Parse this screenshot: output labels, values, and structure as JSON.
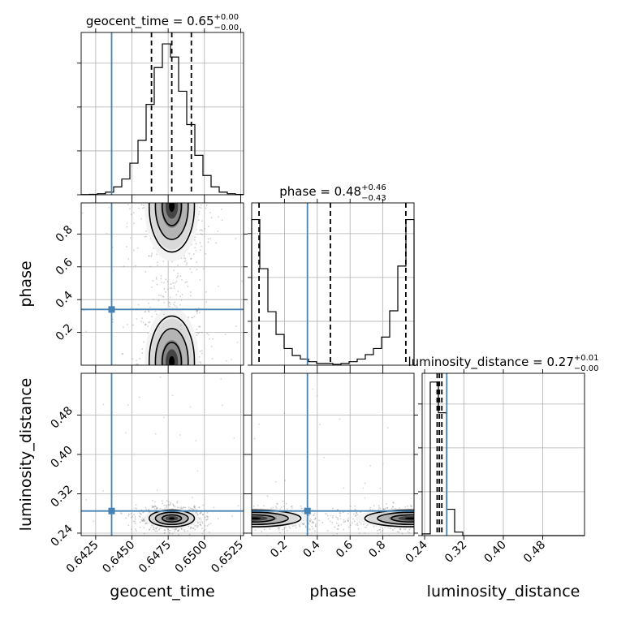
{
  "chart_data": {
    "type": "corner",
    "parameters": [
      "geocent_time",
      "phase",
      "luminosity_distance"
    ],
    "titles": [
      {
        "param": "geocent_time",
        "text": "geocent_time = 0.65",
        "sup": "+0.00",
        "sub": "−0.00"
      },
      {
        "param": "phase",
        "text": "phase = 0.48",
        "sup": "+0.46",
        "sub": "−0.43"
      },
      {
        "param": "luminosity_distance",
        "text": "luminosity_distance = 0.27",
        "sup": "+0.01",
        "sub": "−0.00"
      }
    ],
    "axis_labels": {
      "geocent_time": "geocent_time",
      "phase": "phase",
      "luminosity_distance": "luminosity_distance"
    },
    "ranges": {
      "geocent_time": [
        0.6415,
        0.6527
      ],
      "phase": [
        0.0,
        0.99
      ],
      "luminosity_distance": [
        0.235,
        0.565
      ]
    },
    "ticks": {
      "geocent_time": [
        "0.6425",
        "0.6450",
        "0.6475",
        "0.6500",
        "0.6525"
      ],
      "phase": [
        "0.2",
        "0.4",
        "0.6",
        "0.8"
      ],
      "luminosity_distance": [
        "0.24",
        "0.32",
        "0.40",
        "0.48"
      ]
    },
    "truths": {
      "geocent_time": 0.6436,
      "phase": 0.34,
      "luminosity_distance": 0.285
    },
    "quantiles": {
      "geocent_time": [
        0.64635,
        0.64775,
        0.6491
      ],
      "phase": [
        0.045,
        0.48,
        0.94
      ],
      "luminosity_distance": [
        0.2655,
        0.27,
        0.275
      ]
    },
    "histograms": {
      "geocent_time": {
        "edges": [
          0.6415,
          0.64206,
          0.64262,
          0.64318,
          0.64374,
          0.6443,
          0.64486,
          0.64542,
          0.64598,
          0.64654,
          0.6471,
          0.64766,
          0.64822,
          0.64878,
          0.64934,
          0.6499,
          0.65046,
          0.65102,
          0.65158,
          0.65214,
          0.6527
        ],
        "counts": [
          0.2,
          0.5,
          1.2,
          3,
          9,
          18,
          36,
          62,
          103,
          145,
          172,
          157,
          118,
          80,
          45,
          22,
          9,
          3,
          1.2,
          0.4
        ]
      },
      "phase": {
        "edges": [
          0.0,
          0.0495,
          0.099,
          0.1485,
          0.198,
          0.2475,
          0.297,
          0.3465,
          0.396,
          0.4455,
          0.495,
          0.5445,
          0.594,
          0.6435,
          0.693,
          0.7425,
          0.792,
          0.8415,
          0.891,
          0.9405,
          0.99
        ],
        "counts": [
          166,
          110,
          61,
          35,
          19,
          11,
          7,
          4,
          2,
          2,
          1,
          2,
          4,
          7,
          12,
          19,
          32,
          62,
          113,
          166
        ]
      },
      "luminosity_distance": {
        "edges": [
          0.235,
          0.2515,
          0.268,
          0.2845,
          0.301,
          0.3175,
          0.334,
          0.3505,
          0.367,
          0.3835,
          0.4,
          0.4165,
          0.433,
          0.4495,
          0.466,
          0.4825,
          0.499,
          0.5155,
          0.532,
          0.5485,
          0.565
        ],
        "counts": [
          2,
          175,
          140,
          30,
          4,
          0,
          0,
          0,
          0,
          0,
          0,
          0,
          0,
          0,
          0,
          0,
          0,
          0,
          0,
          0
        ]
      }
    },
    "hist_ymax": {
      "geocent_time": 185,
      "phase": 185,
      "luminosity_distance": 185
    },
    "contour_levels": 3,
    "blobs": [
      {
        "pair": "phase|geocent_time",
        "cx": 0.64775,
        "cy": 0.02,
        "sx": 0.00078,
        "sy": 0.14
      },
      {
        "pair": "phase|geocent_time",
        "cx": 0.64775,
        "cy": 0.97,
        "sx": 0.00078,
        "sy": 0.14
      },
      {
        "pair": "luminosity_distance|geocent_time",
        "cx": 0.64775,
        "cy": 0.27,
        "sx": 0.00078,
        "sy": 0.0085
      },
      {
        "pair": "luminosity_distance|phase",
        "cx": 0.02,
        "cy": 0.27,
        "sx": 0.14,
        "sy": 0.0085
      },
      {
        "pair": "luminosity_distance|phase",
        "cx": 0.97,
        "cy": 0.27,
        "sx": 0.14,
        "sy": 0.0085
      }
    ],
    "grid": true
  }
}
